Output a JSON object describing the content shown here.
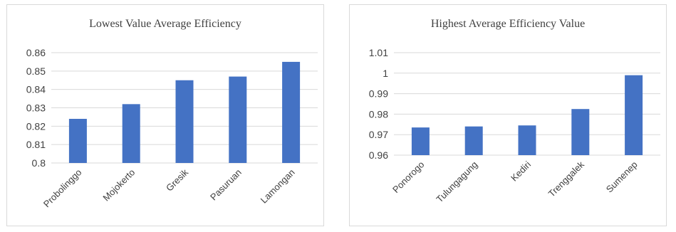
{
  "chart_data": [
    {
      "type": "bar",
      "title": "Lowest Value  Average Efficiency",
      "categories": [
        "Probolinggo",
        "Mojokerto",
        "Gresik",
        "Pasuruan",
        "Lamongan"
      ],
      "values": [
        0.824,
        0.832,
        0.845,
        0.847,
        0.855
      ],
      "yticks": [
        "0.8",
        "0.81",
        "0.82",
        "0.83",
        "0.84",
        "0.85",
        "0.86"
      ],
      "ylim": [
        0.8,
        0.86
      ],
      "grid": true,
      "bar_color": "#4472C4"
    },
    {
      "type": "bar",
      "title": "Highest Average Efficiency  Value",
      "categories": [
        "Ponorogo",
        "Tulungagung",
        "Kediri",
        "Trenggalek",
        "Sumenep"
      ],
      "values": [
        0.9735,
        0.974,
        0.9745,
        0.9825,
        0.999
      ],
      "yticks": [
        "0.96",
        "0.97",
        "0.98",
        "0.99",
        "1",
        "1.01"
      ],
      "ylim": [
        0.96,
        1.01
      ],
      "grid": true,
      "bar_color": "#4472C4"
    }
  ]
}
